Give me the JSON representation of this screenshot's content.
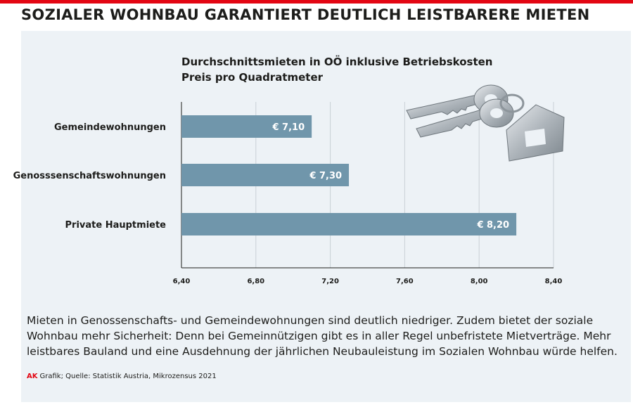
{
  "headline": "SOZIALER WOHNBAU GARANTIERT DEUTLICH LEISTBARERE MIETEN",
  "chart_data": {
    "type": "bar",
    "orientation": "horizontal",
    "title": "Durchschnittsmieten in OÖ inklusive Betriebskosten",
    "subtitle": "Preis pro Quadratmeter",
    "categories": [
      "Gemeindewohnungen",
      "Genosssenschaftswohnungen",
      "Private Hauptmiete"
    ],
    "values": [
      7.1,
      7.3,
      8.2
    ],
    "value_labels": [
      "€ 7,10",
      "€ 7,30",
      "€ 8,20"
    ],
    "xlim": [
      6.4,
      8.4
    ],
    "xticks": [
      6.4,
      6.8,
      7.2,
      7.6,
      8.0,
      8.4
    ],
    "xtick_labels": [
      "6,40",
      "6,80",
      "7,20",
      "7,60",
      "8,00",
      "8,40"
    ],
    "grid": true,
    "bar_color": "#7096ab"
  },
  "body_text": "Mieten in Genossenschafts- und Gemeindewohnungen sind deutlich niedriger. Zudem bietet der soziale Wohnbau mehr Sicherheit: Denn bei Gemeinnützigen gibt es in aller Regel unbefristete Mietverträge. Mehr leistbares Bauland und eine Ausdehnung der jährlichen Neubauleistung im Sozialen Wohnbau würde helfen.",
  "source": {
    "brand": "AK",
    "text": "Grafik; Quelle: Statistik Austria, Mikrozensus 2021"
  },
  "colors": {
    "accent": "#e30613",
    "panel": "#edf2f6",
    "bar": "#7096ab"
  },
  "illustration": "house-keys-icon"
}
